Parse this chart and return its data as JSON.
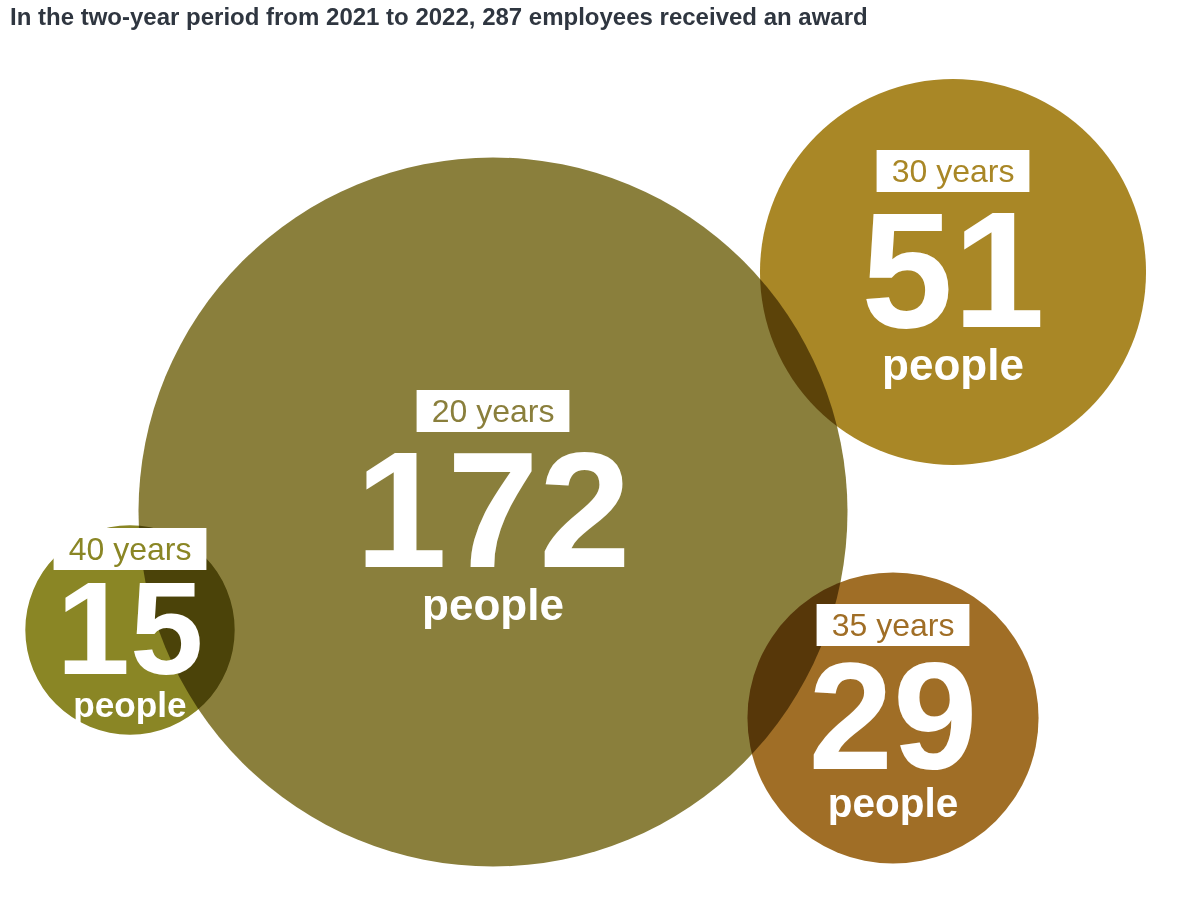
{
  "chart_data": {
    "type": "other",
    "title": "In the two-year period from 2021 to 2022, 287 employees received an award",
    "categories": [
      "20 years",
      "30 years",
      "35 years",
      "40 years"
    ],
    "values": [
      172,
      51,
      29,
      15
    ],
    "data_labels": true,
    "annotations": [
      {
        "text": "people",
        "x": "20 years"
      },
      {
        "text": "people",
        "x": "30 years"
      },
      {
        "text": "people",
        "x": "35 years"
      },
      {
        "text": "people",
        "x": "40 years"
      }
    ],
    "colors": [
      "#8a7f3c",
      "#a98726",
      "#a06e26",
      "#8a8625"
    ]
  }
}
